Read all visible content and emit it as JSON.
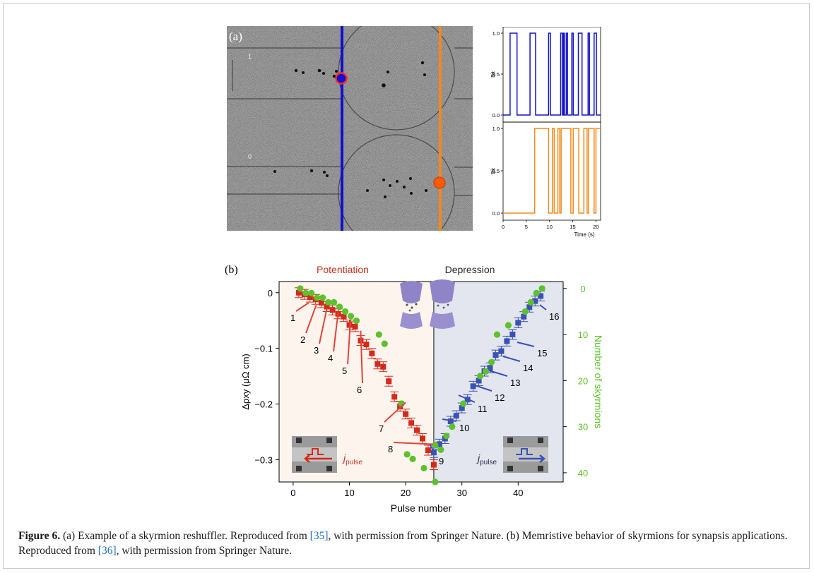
{
  "panel_a": {
    "label": "(a)",
    "track_labels": [
      "1",
      "0"
    ],
    "chart_data": [
      {
        "type": "line",
        "ylabel": "Bit",
        "ylim": [
          0,
          1
        ],
        "xlim": [
          0,
          21
        ],
        "yticks": [
          "0.0",
          "0.5",
          "1.0"
        ],
        "color": "#1010c8",
        "series": [
          {
            "x": [
              0,
              1.5,
              1.5,
              3.0,
              3.0,
              5.8,
              5.8,
              7.0,
              7.0,
              9.8,
              9.8,
              10.2,
              10.2,
              12.4,
              12.4,
              12.8,
              12.8,
              13.0,
              13.0,
              13.2,
              13.2,
              13.6,
              13.6,
              13.9,
              13.9,
              14.8,
              14.8,
              15.1,
              15.1,
              16.2,
              16.2,
              17.0,
              17.0,
              18.3,
              18.3,
              18.6,
              18.6,
              19.6,
              19.6,
              20.1,
              20.1,
              21
            ],
            "values": [
              0,
              0,
              1,
              1,
              0,
              0,
              1,
              1,
              0,
              0,
              1,
              1,
              0,
              0,
              1,
              1,
              0,
              0,
              1,
              1,
              0,
              0,
              1,
              1,
              0,
              0,
              1,
              1,
              0,
              0,
              1,
              1,
              0,
              0,
              1,
              1,
              0,
              0,
              1,
              1,
              0,
              0
            ]
          }
        ]
      },
      {
        "type": "line",
        "ylabel": "Bit",
        "xlabel": "Time (s)",
        "ylim": [
          0,
          1
        ],
        "xlim": [
          0,
          21
        ],
        "yticks": [
          "0.0",
          "0.5",
          "1.0"
        ],
        "xticks": [
          "0",
          "5",
          "10",
          "15",
          "20"
        ],
        "color": "#f08a1c",
        "series": [
          {
            "x": [
              0,
              6.8,
              6.8,
              9.8,
              9.8,
              10.6,
              10.6,
              11.0,
              11.0,
              11.8,
              11.8,
              12.2,
              12.2,
              12.5,
              12.5,
              14.6,
              14.6,
              15.1,
              15.1,
              16.3,
              16.3,
              17.4,
              17.4,
              18.1,
              18.1,
              18.4,
              18.4,
              19.6,
              19.6,
              20.0,
              20.0,
              21
            ],
            "values": [
              0,
              0,
              1,
              1,
              0,
              0,
              1,
              1,
              0,
              0,
              1,
              1,
              0,
              0,
              1,
              1,
              0,
              0,
              1,
              1,
              0,
              0,
              1,
              1,
              0,
              0,
              1,
              1,
              0,
              0,
              1,
              1
            ]
          }
        ]
      }
    ]
  },
  "panel_b": {
    "label": "(b)",
    "potentiation_label": "Potentiation",
    "depression_label": "Depression",
    "jpulse": "j",
    "jpulse_sub": "pulse",
    "chart_data": {
      "type": "scatter",
      "xlabel": "Pulse number",
      "ylabel": "Δρxy (μΩ cm)",
      "y2label": "Number of skyrmions",
      "xlim": [
        -2.5,
        48
      ],
      "ylim": [
        -0.34,
        0.02
      ],
      "y2lim": [
        -1.5,
        42
      ],
      "xticks": [
        "0",
        "10",
        "20",
        "30",
        "40"
      ],
      "yticks": [
        "0",
        "−0.1",
        "−0.2",
        "−0.3"
      ],
      "y2ticks": [
        "0",
        "10",
        "20",
        "30",
        "40"
      ],
      "colors": {
        "potentiation": "#d42a1a",
        "depression": "#3a52b4",
        "skyrmions": "#5cc22c",
        "pot_bg": "#fdf4ee",
        "dep_bg": "#e3e5ef"
      },
      "series": [
        {
          "name": "Potentiation",
          "x": [
            1,
            2,
            3,
            4,
            5,
            6,
            7,
            8,
            9,
            10,
            11,
            12,
            13,
            14,
            15,
            16,
            17,
            18,
            19,
            20,
            21,
            22,
            23,
            24,
            25
          ],
          "values": [
            0,
            -0.003,
            -0.008,
            -0.012,
            -0.018,
            -0.025,
            -0.031,
            -0.038,
            -0.043,
            -0.058,
            -0.061,
            -0.086,
            -0.093,
            -0.109,
            -0.128,
            -0.133,
            -0.159,
            -0.187,
            -0.204,
            -0.218,
            -0.234,
            -0.247,
            -0.262,
            -0.283,
            -0.309
          ]
        },
        {
          "name": "Depression",
          "x": [
            25,
            26,
            27,
            28,
            29,
            30,
            31,
            32,
            33,
            34,
            35,
            36,
            37,
            38,
            39,
            40,
            41,
            42,
            43,
            44
          ],
          "values": [
            -0.287,
            -0.272,
            -0.262,
            -0.231,
            -0.221,
            -0.207,
            -0.192,
            -0.168,
            -0.158,
            -0.141,
            -0.135,
            -0.112,
            -0.105,
            -0.087,
            -0.075,
            -0.054,
            -0.043,
            -0.026,
            -0.015,
            -0.006
          ]
        },
        {
          "name": "Number of skyrmions",
          "x": [
            1,
            2,
            3,
            4,
            5,
            6,
            7,
            8,
            9,
            10,
            11,
            15,
            16,
            19,
            20,
            21,
            23,
            25,
            25,
            26,
            27,
            28,
            30,
            33,
            34,
            35,
            36,
            38,
            41,
            42,
            43,
            44
          ],
          "values": [
            0,
            1,
            1,
            2,
            2,
            3,
            3,
            4,
            5,
            6,
            7,
            10,
            12,
            25,
            36,
            37,
            39,
            42,
            34,
            35,
            32,
            30,
            25,
            19,
            18,
            16,
            10,
            8,
            5,
            3,
            1,
            0
          ]
        }
      ],
      "annotations": [
        "1",
        "2",
        "3",
        "4",
        "5",
        "6",
        "7",
        "8",
        "9",
        "10",
        "11",
        "12",
        "13",
        "14",
        "15",
        "16"
      ]
    }
  },
  "caption": {
    "figure": "Figure 6.",
    "t1": " (a) Example of a skyrmion reshuffler. Reproduced from ",
    "r1": "[35]",
    "t2": ", with permission from Springer Nature. (b) Memristive behavior of skyrmions for synapsis applications. Reproduced from ",
    "r2": "[36]",
    "t3": ", with permission from Springer Nature."
  }
}
